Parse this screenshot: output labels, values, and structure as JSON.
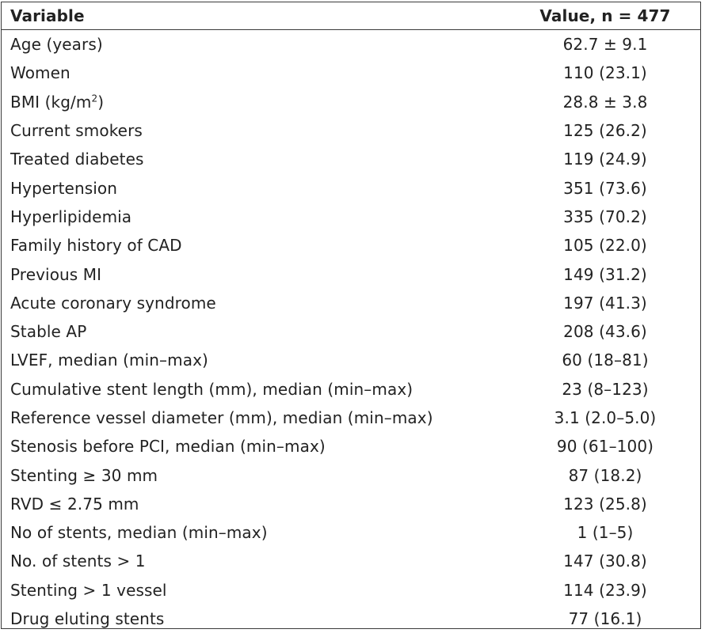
{
  "table": {
    "headers": {
      "variable": "Variable",
      "value": "Value, n = 477"
    },
    "rows": [
      {
        "variable": "Age (years)",
        "value": "62.7 ± 9.1"
      },
      {
        "variable": "Women",
        "value": "110 (23.1)"
      },
      {
        "variable": "BMI (kg/m",
        "variable_sup": "2",
        "variable_suffix": ")",
        "value": "28.8 ± 3.8"
      },
      {
        "variable": "Current smokers",
        "value": "125 (26.2)"
      },
      {
        "variable": "Treated diabetes",
        "value": "119 (24.9)"
      },
      {
        "variable": "Hypertension",
        "value": "351 (73.6)"
      },
      {
        "variable": "Hyperlipidemia",
        "value": "335 (70.2)"
      },
      {
        "variable": "Family history of CAD",
        "value": "105 (22.0)"
      },
      {
        "variable": "Previous MI",
        "value": "149 (31.2)"
      },
      {
        "variable": "Acute coronary syndrome",
        "value": "197 (41.3)"
      },
      {
        "variable": "Stable AP",
        "value": "208 (43.6)"
      },
      {
        "variable": "LVEF, median (min–max)",
        "value": "60 (18–81)"
      },
      {
        "variable": "Cumulative stent length (mm), median (min–max)",
        "value": "23 (8–123)"
      },
      {
        "variable": "Reference vessel diameter (mm), median (min–max)",
        "value": "3.1 (2.0–5.0)"
      },
      {
        "variable": "Stenosis before PCI, median (min–max)",
        "value": "90 (61–100)"
      },
      {
        "variable": "Stenting ≥ 30 mm",
        "value": "87 (18.2)"
      },
      {
        "variable": "RVD ≤ 2.75 mm",
        "value": "123 (25.8)"
      },
      {
        "variable": "No of stents, median (min–max)",
        "value": "1 (1–5)"
      },
      {
        "variable": "No. of stents > 1",
        "value": "147 (30.8)"
      },
      {
        "variable": "Stenting > 1 vessel",
        "value": "114 (23.9)"
      },
      {
        "variable": "Drug eluting stents",
        "value": "77 (16.1)"
      }
    ]
  }
}
